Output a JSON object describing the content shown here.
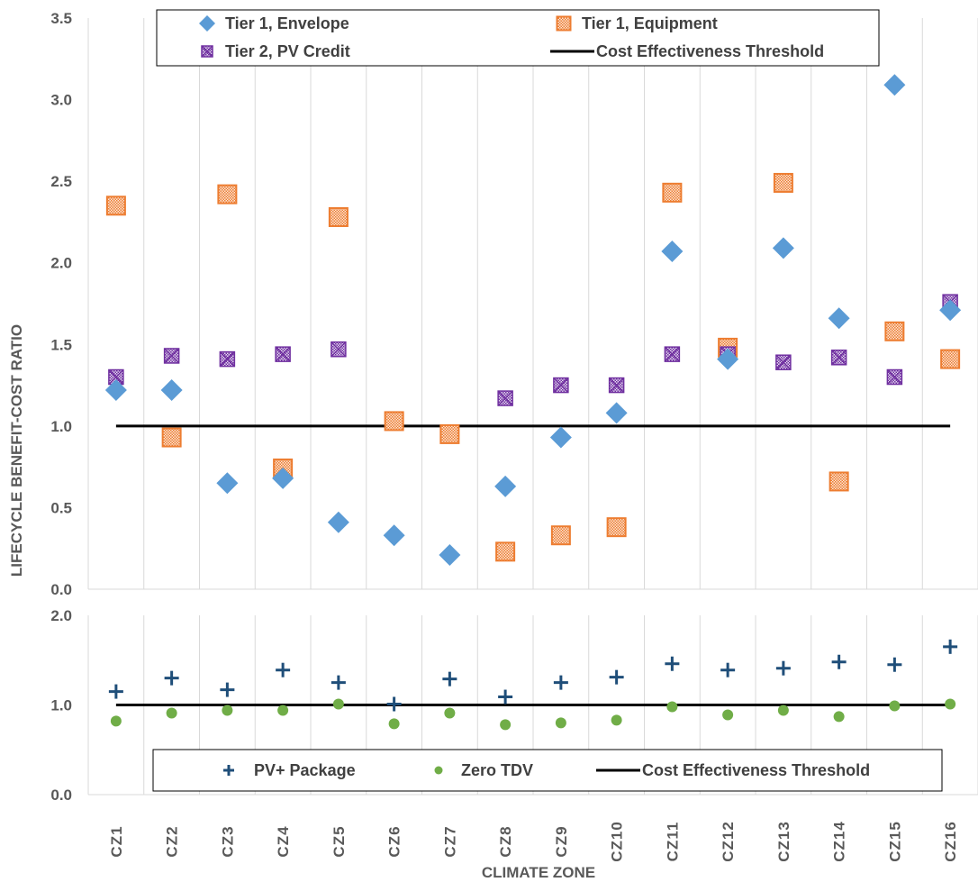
{
  "chart_data": [
    {
      "type": "scatter",
      "categories": [
        "CZ1",
        "CZ2",
        "CZ3",
        "CZ4",
        "CZ5",
        "CZ6",
        "CZ7",
        "CZ8",
        "CZ9",
        "CZ10",
        "CZ11",
        "CZ12",
        "CZ13",
        "CZ14",
        "CZ15",
        "CZ16"
      ],
      "ylim": [
        0,
        3.5
      ],
      "yticks": [
        "0.0",
        "0.5",
        "1.0",
        "1.5",
        "2.0",
        "2.5",
        "3.0",
        "3.5"
      ],
      "ylabel": "LIFECYCLE BENEFIT-COST RATIO",
      "grid": "vertical",
      "legend_position": "top",
      "series": [
        {
          "name": "Tier 1, Envelope",
          "marker": "diamond",
          "color": "#5b9bd5",
          "values": [
            1.22,
            1.22,
            0.65,
            0.68,
            0.41,
            0.33,
            0.21,
            0.63,
            0.93,
            1.08,
            2.07,
            1.41,
            2.09,
            1.66,
            3.09,
            1.71
          ]
        },
        {
          "name": "Tier 1, Equipment",
          "marker": "square-hatched",
          "color": "#ed7d31",
          "values": [
            2.35,
            0.93,
            2.42,
            0.74,
            2.28,
            1.03,
            0.95,
            0.23,
            0.33,
            0.38,
            2.43,
            1.48,
            2.49,
            0.66,
            1.58,
            1.41
          ]
        },
        {
          "name": "Tier 2, PV Credit",
          "marker": "square-x",
          "color": "#7030a0",
          "values": [
            1.3,
            1.43,
            1.41,
            1.44,
            1.47,
            null,
            null,
            1.17,
            1.25,
            1.25,
            1.44,
            1.44,
            1.39,
            1.42,
            1.3,
            1.76
          ]
        },
        {
          "name": "Cost Effectiveness Threshold",
          "marker": "line",
          "color": "#000000",
          "value": 1.0
        }
      ]
    },
    {
      "type": "scatter",
      "categories": [
        "CZ1",
        "CZ2",
        "CZ3",
        "CZ4",
        "CZ5",
        "CZ6",
        "CZ7",
        "CZ8",
        "CZ9",
        "CZ10",
        "CZ11",
        "CZ12",
        "CZ13",
        "CZ14",
        "CZ15",
        "CZ16"
      ],
      "ylim": [
        0,
        2.0
      ],
      "yticks": [
        "0.0",
        "1.0",
        "2.0"
      ],
      "xlabel": "CLIMATE ZONE",
      "grid": "vertical",
      "legend_position": "bottom",
      "series": [
        {
          "name": "PV+ Package",
          "marker": "plus",
          "color": "#1f4e79",
          "values": [
            1.15,
            1.3,
            1.17,
            1.39,
            1.25,
            1.01,
            1.29,
            1.09,
            1.25,
            1.31,
            1.46,
            1.39,
            1.41,
            1.48,
            1.45,
            1.65
          ]
        },
        {
          "name": "Zero TDV",
          "marker": "circle",
          "color": "#70ad47",
          "values": [
            0.82,
            0.91,
            0.94,
            0.94,
            1.01,
            0.79,
            0.91,
            0.78,
            0.8,
            0.83,
            0.98,
            0.89,
            0.94,
            0.87,
            0.99,
            1.01
          ]
        },
        {
          "name": "Cost Effectiveness Threshold",
          "marker": "line",
          "color": "#000000",
          "value": 1.0
        }
      ]
    }
  ]
}
